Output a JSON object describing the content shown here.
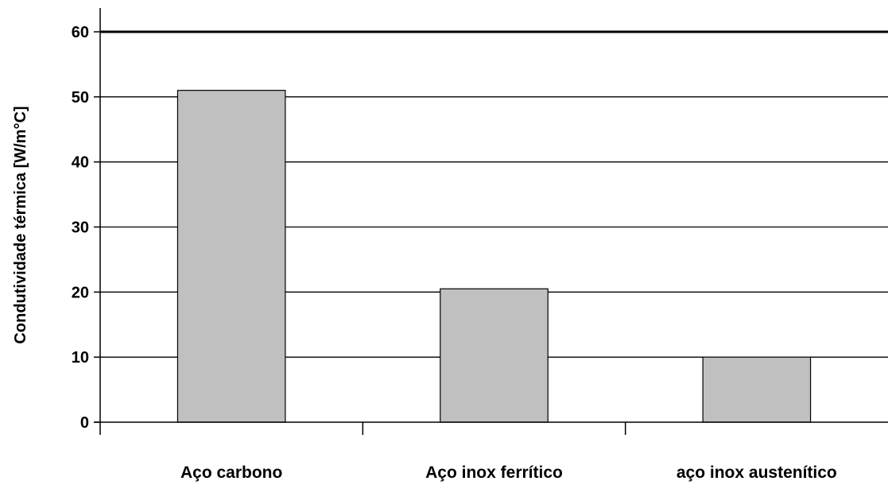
{
  "chart_data": {
    "type": "bar",
    "title": "",
    "xlabel": "",
    "ylabel": "Condutividade térmica [W/m°C]",
    "categories": [
      "Aço carbono",
      "Aço inox ferrítico",
      "aço inox austenítico"
    ],
    "values": [
      51,
      20.5,
      10
    ],
    "ylim": [
      0,
      60
    ],
    "yticks": [
      "0",
      "10",
      "20",
      "30",
      "40",
      "50",
      "60"
    ],
    "grid": true,
    "legend": "none",
    "colors": {
      "bar_fill": "#c0c0c0",
      "bar_stroke": "#000000",
      "grid": "#000000",
      "axis": "#000000"
    }
  }
}
